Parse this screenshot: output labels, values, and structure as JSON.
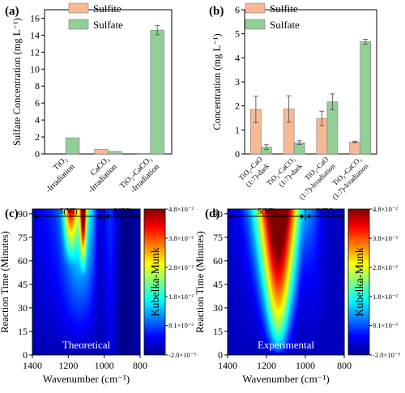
{
  "figure": {
    "panel_labels": [
      "(a)",
      "(b)",
      "(c)",
      "(d)"
    ],
    "colors": {
      "sulfite": "#f7b994",
      "sulfate": "#91cf96",
      "axis": "#000000",
      "error": "#555555"
    }
  },
  "chart_data": [
    {
      "panel": "(a)",
      "type": "bar",
      "ylabel": "Sulfate Concentration (mg L⁻¹)",
      "ylim": [
        0,
        17
      ],
      "yticks": [
        0,
        2,
        4,
        6,
        8,
        10,
        12,
        14,
        16
      ],
      "categories": [
        [
          "TiO₂",
          "-Irradiation"
        ],
        [
          "CaCO₃",
          "-Irradiation"
        ],
        [
          "TiO₂-CaCO₃",
          "-Irradiation"
        ]
      ],
      "series": [
        {
          "name": "Sulfite",
          "color": "#f7b994",
          "values": [
            0.0,
            0.55,
            0.05
          ],
          "errors": [
            0,
            0,
            0
          ]
        },
        {
          "name": "Sulfate",
          "color": "#91cf96",
          "values": [
            1.9,
            0.3,
            14.6
          ],
          "errors": [
            0,
            0,
            0.55
          ]
        }
      ],
      "legend": "top-left"
    },
    {
      "panel": "(b)",
      "type": "bar",
      "ylabel": "Concentration (mg L⁻¹)",
      "ylim": [
        0,
        6
      ],
      "yticks": [
        0,
        1,
        2,
        3,
        4,
        5,
        6
      ],
      "categories": [
        [
          "TiO₂-CaO",
          "(1:7)-dark"
        ],
        [
          "TiO₂-CaCO₃",
          "(1:7)-dark"
        ],
        [
          "TiO₂-CaO",
          "(1:7)-Irradiation"
        ],
        [
          "TiO₂-CaCO₃",
          "(1:7)-Irradiation"
        ]
      ],
      "series": [
        {
          "name": "Sulfite",
          "color": "#f7b994",
          "values": [
            1.85,
            1.87,
            1.48,
            0.5
          ],
          "errors": [
            0.55,
            0.55,
            0.3,
            0.03
          ]
        },
        {
          "name": "Sulfate",
          "color": "#91cf96",
          "values": [
            0.28,
            0.47,
            2.17,
            4.67
          ],
          "errors": [
            0.1,
            0.08,
            0.33,
            0.1
          ]
        }
      ],
      "legend": "top-left"
    },
    {
      "panel": "(c)",
      "type": "heatmap",
      "xlabel": "Wavenumber (cm⁻¹)",
      "ylabel": "Reaction Time (Minutes)",
      "xlim": [
        1400,
        800
      ],
      "ylim": [
        0,
        93
      ],
      "xticks": [
        1400,
        1200,
        1000,
        800
      ],
      "yticks": [
        0,
        15,
        30,
        45,
        60,
        75,
        90
      ],
      "annotation": "Theoretical",
      "regions": [
        {
          "label": "S(VI)",
          "from": 1400,
          "to": 1000
        },
        {
          "label": "S(IV)",
          "from": 1000,
          "to": 800
        }
      ],
      "colorbar": {
        "label": "Kubelka-Munk",
        "ticks": [
          "4.8×10⁻²",
          "3.8×10⁻²",
          "2.8×10⁻²",
          "1.8×10⁻²",
          "8.1×10⁻³",
          "-2.0×10⁻³"
        ],
        "tick_values": [
          0.048,
          0.038,
          0.028,
          0.018,
          0.0081,
          -0.002
        ]
      }
    },
    {
      "panel": "(d)",
      "type": "heatmap",
      "xlabel": "Wavenumber (cm⁻¹)",
      "ylabel": "Reaction Time (Minutes)",
      "xlim": [
        1400,
        800
      ],
      "ylim": [
        0,
        93
      ],
      "xticks": [
        1400,
        1200,
        1000,
        800
      ],
      "yticks": [
        0,
        15,
        30,
        45,
        60,
        75,
        90
      ],
      "annotation": "Experimental",
      "regions": [
        {
          "label": "S(VI)",
          "from": 1400,
          "to": 1000
        },
        {
          "label": "S(IV)",
          "from": 1000,
          "to": 800
        }
      ],
      "colorbar": {
        "label": "Kubelka-Munk",
        "ticks": [
          "4.8×10⁻²",
          "3.8×10⁻²",
          "2.8×10⁻²",
          "1.8×10⁻²",
          "8.1×10⁻³",
          "-2.0×10⁻³"
        ],
        "tick_values": [
          0.048,
          0.038,
          0.028,
          0.018,
          0.0081,
          -0.002
        ]
      }
    }
  ]
}
